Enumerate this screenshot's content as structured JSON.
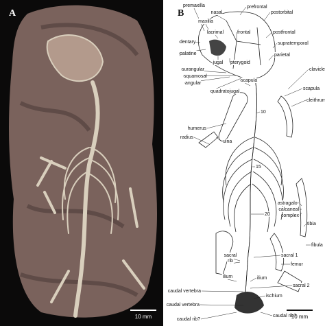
{
  "panels": [
    {
      "letter": "A",
      "scale": "10 mm"
    },
    {
      "letter": "B",
      "scale": "10 mm",
      "labels": [
        "premaxilla",
        "nasal",
        "prefrontal",
        "maxilla",
        "postorbital",
        "lacrimal",
        "frontal",
        "postfrontal",
        "dentary",
        "supratemporal",
        "palatine",
        "jugal",
        "pterygoid",
        "parietal",
        "surangular",
        "squamosal",
        "angular",
        "quadratojugal",
        "scapula",
        "clavicle",
        "scapula",
        "cleithrum",
        "humerus",
        "radius",
        "ulna",
        "10",
        "15",
        "20",
        "astragalo-",
        "calcaneal",
        "complex",
        "tibia",
        "fibula",
        "femur",
        "sacral",
        "rib",
        "sacral 1",
        "ilium",
        "ilium",
        "sacral 2",
        "caudal vertebra",
        "ischium",
        "caudal vertebra",
        "caudal rib?",
        "caudal rib?"
      ]
    }
  ]
}
